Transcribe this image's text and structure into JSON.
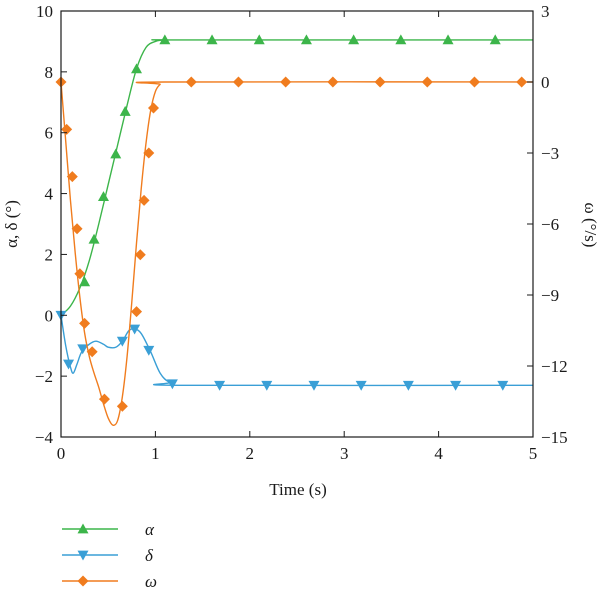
{
  "chart_data": {
    "type": "line",
    "xlabel": "Time (s)",
    "ylabel_left": "α, δ (°)",
    "ylabel_right": "ω (°/s)",
    "xlim": [
      0,
      5
    ],
    "ylim_left": [
      -4,
      10
    ],
    "ylim_right": [
      -15,
      3
    ],
    "x_ticks": [
      "0",
      "1",
      "2",
      "3",
      "4",
      "5"
    ],
    "y_left_ticks": [
      "−4",
      "−2",
      "0",
      "2",
      "4",
      "6",
      "8",
      "10"
    ],
    "y_right_ticks": [
      "−15",
      "−12",
      "−9",
      "−6",
      "−3",
      "0",
      "3"
    ],
    "grid": false,
    "legend_position": "bottom-left, below plot",
    "series": [
      {
        "name": "α",
        "axis": "left",
        "color": "#3cb54a",
        "marker": "triangle-up",
        "line_points": [
          [
            0,
            0
          ],
          [
            0.1,
            0.3
          ],
          [
            0.2,
            0.9
          ],
          [
            0.3,
            1.8
          ],
          [
            0.4,
            3.0
          ],
          [
            0.5,
            4.3
          ],
          [
            0.6,
            5.6
          ],
          [
            0.7,
            6.9
          ],
          [
            0.8,
            8.1
          ],
          [
            0.9,
            8.8
          ],
          [
            1.0,
            9.0
          ],
          [
            1.1,
            9.05
          ],
          [
            1.3,
            9.05
          ],
          [
            5,
            9.05
          ]
        ],
        "marker_points": [
          [
            0.25,
            1.1
          ],
          [
            0.35,
            2.5
          ],
          [
            0.45,
            3.9
          ],
          [
            0.58,
            5.3
          ],
          [
            0.68,
            6.7
          ],
          [
            0.8,
            8.1
          ],
          [
            1.1,
            9.05
          ],
          [
            1.6,
            9.05
          ],
          [
            2.1,
            9.05
          ],
          [
            2.6,
            9.05
          ],
          [
            3.1,
            9.05
          ],
          [
            3.6,
            9.05
          ],
          [
            4.1,
            9.05
          ],
          [
            4.6,
            9.05
          ]
        ]
      },
      {
        "name": "δ",
        "axis": "left",
        "color": "#3a9fd6",
        "marker": "triangle-down",
        "line_points": [
          [
            0,
            0
          ],
          [
            0.05,
            -1.0
          ],
          [
            0.1,
            -1.7
          ],
          [
            0.13,
            -1.9
          ],
          [
            0.17,
            -1.6
          ],
          [
            0.22,
            -1.2
          ],
          [
            0.3,
            -0.95
          ],
          [
            0.37,
            -0.85
          ],
          [
            0.45,
            -0.95
          ],
          [
            0.5,
            -1.05
          ],
          [
            0.58,
            -1.05
          ],
          [
            0.65,
            -0.85
          ],
          [
            0.72,
            -0.5
          ],
          [
            0.78,
            -0.45
          ],
          [
            0.85,
            -0.6
          ],
          [
            0.95,
            -1.2
          ],
          [
            1.05,
            -1.9
          ],
          [
            1.15,
            -2.2
          ],
          [
            1.3,
            -2.3
          ],
          [
            5,
            -2.3
          ]
        ],
        "marker_points": [
          [
            0,
            0
          ],
          [
            0.08,
            -1.6
          ],
          [
            0.23,
            -1.1
          ],
          [
            0.65,
            -0.85
          ],
          [
            0.78,
            -0.45
          ],
          [
            0.93,
            -1.15
          ],
          [
            1.18,
            -2.25
          ],
          [
            1.68,
            -2.3
          ],
          [
            2.18,
            -2.3
          ],
          [
            2.68,
            -2.3
          ],
          [
            3.18,
            -2.3
          ],
          [
            3.68,
            -2.3
          ],
          [
            4.18,
            -2.3
          ],
          [
            4.68,
            -2.3
          ]
        ]
      },
      {
        "name": "ω",
        "axis": "right",
        "color": "#f07c1e",
        "marker": "diamond",
        "line_points": [
          [
            0,
            0
          ],
          [
            0.05,
            -2.5
          ],
          [
            0.1,
            -5.0
          ],
          [
            0.15,
            -7.2
          ],
          [
            0.2,
            -9.1
          ],
          [
            0.25,
            -10.6
          ],
          [
            0.3,
            -11.6
          ],
          [
            0.35,
            -12.3
          ],
          [
            0.4,
            -12.9
          ],
          [
            0.45,
            -13.6
          ],
          [
            0.5,
            -14.2
          ],
          [
            0.55,
            -14.5
          ],
          [
            0.6,
            -14.3
          ],
          [
            0.65,
            -13.3
          ],
          [
            0.7,
            -11.6
          ],
          [
            0.75,
            -9.3
          ],
          [
            0.8,
            -6.8
          ],
          [
            0.85,
            -4.5
          ],
          [
            0.9,
            -2.6
          ],
          [
            0.95,
            -1.2
          ],
          [
            1.0,
            -0.4
          ],
          [
            1.05,
            -0.1
          ],
          [
            1.1,
            0
          ],
          [
            5,
            0
          ]
        ],
        "marker_points": [
          [
            0,
            0
          ],
          [
            0.06,
            -2.0
          ],
          [
            0.12,
            -4.0
          ],
          [
            0.17,
            -6.2
          ],
          [
            0.2,
            -8.1
          ],
          [
            0.25,
            -10.2
          ],
          [
            0.33,
            -11.4
          ],
          [
            0.46,
            -13.4
          ],
          [
            0.65,
            -13.7
          ],
          [
            0.8,
            -9.7
          ],
          [
            0.84,
            -7.3
          ],
          [
            0.88,
            -5.0
          ],
          [
            0.93,
            -3.0
          ],
          [
            0.98,
            -1.1
          ],
          [
            1.38,
            0
          ],
          [
            1.88,
            0
          ],
          [
            2.38,
            0
          ],
          [
            2.88,
            0
          ],
          [
            3.38,
            0
          ],
          [
            3.88,
            0
          ],
          [
            4.38,
            0
          ],
          [
            4.88,
            0
          ]
        ]
      }
    ]
  }
}
